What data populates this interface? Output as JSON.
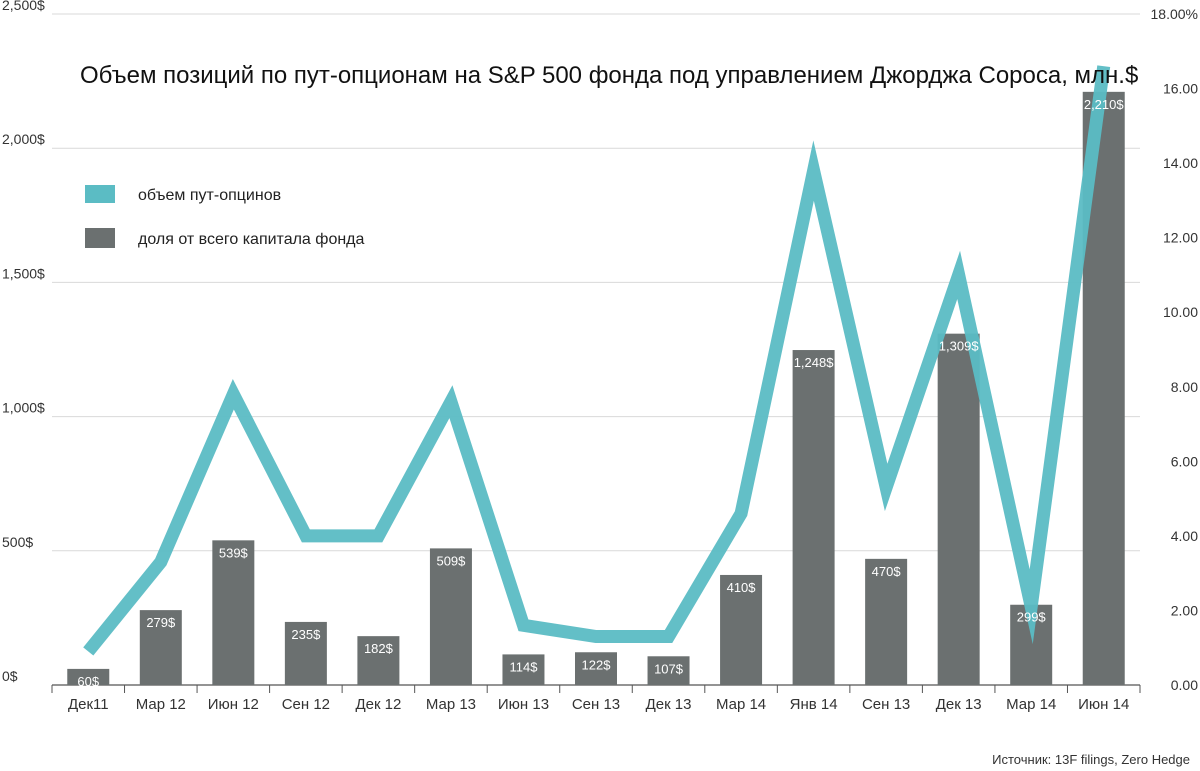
{
  "chart_data": {
    "type": "bar+line",
    "title": "Объем позиций по пут-опционам на S&P 500 фонда под управлением Джорджа Сороса, млн.$",
    "categories": [
      "Дек11",
      "Мар 12",
      "Июн 12",
      "Сен 12",
      "Дек 12",
      "Мар 13",
      "Июн 13",
      "Сен 13",
      "Дек 13",
      "Мар 14",
      "Янв 14",
      "Сен 13",
      "Дек 13",
      "Мар 14",
      "Июн 14"
    ],
    "bar_series": {
      "name": "доля от всего капитала фонда",
      "color": "#6b7070",
      "values": [
        60,
        279,
        539,
        235,
        182,
        509,
        114,
        122,
        107,
        410,
        1248,
        470,
        1309,
        299,
        2210
      ],
      "labels": [
        "60$",
        "279$",
        "539$",
        "235$",
        "182$",
        "509$",
        "114$",
        "122$",
        "107$",
        "410$",
        "1,248$",
        "470$",
        "1,309$",
        "299$",
        "2,210$"
      ]
    },
    "line_series": {
      "name": "объем пут-опцинов",
      "color": "#5bbcc4",
      "axis": "right",
      "values": [
        0.9,
        3.3,
        7.8,
        4.0,
        4.0,
        7.6,
        1.6,
        1.3,
        1.3,
        4.6,
        13.8,
        5.3,
        11.0,
        2.1,
        16.6
      ]
    },
    "y_left": {
      "ylim": [
        0,
        2500
      ],
      "ticks": [
        0,
        500,
        1000,
        1500,
        2000,
        2500
      ],
      "tick_labels": [
        "0$",
        "500$",
        "1,000$",
        "1,500$",
        "2,000$",
        "2,500$"
      ]
    },
    "y_right": {
      "ylim": [
        0,
        18
      ],
      "ticks": [
        0,
        2,
        4,
        6,
        8,
        10,
        12,
        14,
        16,
        18
      ],
      "tick_labels": [
        "0.00",
        "2.00",
        "4.00",
        "6.00",
        "8.00",
        "10.00",
        "12.00",
        "14.00",
        "16.00",
        "18.00%"
      ]
    },
    "grid": true,
    "legend_position": "top-left",
    "source": "Источник: 13F filings, Zero Hedge"
  }
}
